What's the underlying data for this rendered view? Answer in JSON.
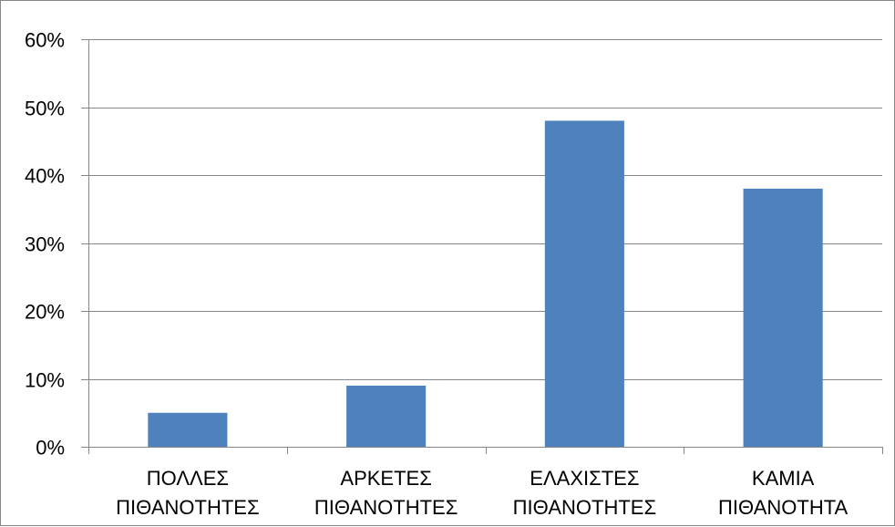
{
  "chart_data": {
    "type": "bar",
    "categories": [
      [
        "ΠΟΛΛΕΣ",
        "ΠΙΘΑΝΟΤΗΤΕΣ"
      ],
      [
        "ΑΡΚΕΤΕΣ",
        "ΠΙΘΑΝΟΤΗΤΕΣ"
      ],
      [
        "ΕΛΑΧΙΣΤΕΣ",
        "ΠΙΘΑΝΟΤΗΤΕΣ"
      ],
      [
        "ΚΑΜΙΑ",
        "ΠΙΘΑΝΟΤΗΤΑ"
      ]
    ],
    "values": [
      5,
      9,
      48,
      38
    ],
    "ylim": [
      0,
      60
    ],
    "yticks": [
      "0%",
      "10%",
      "20%",
      "30%",
      "40%",
      "50%",
      "60%"
    ],
    "grid": true,
    "legend": "none",
    "colors": {
      "bar": "#4F81BD",
      "grid": "#868686",
      "axis": "#868686"
    }
  }
}
